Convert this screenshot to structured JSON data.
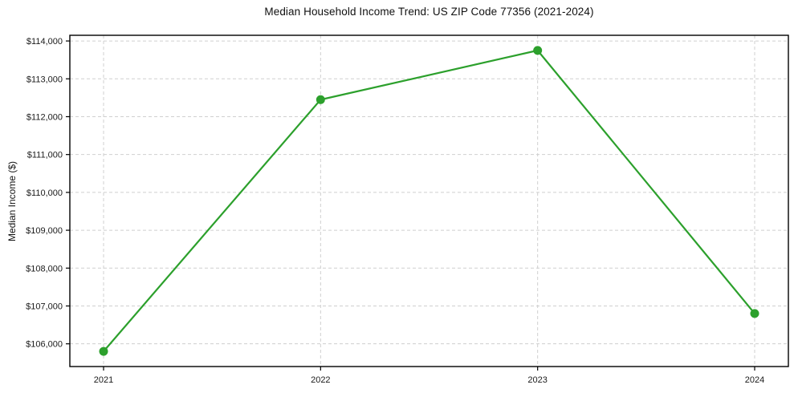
{
  "chart_data": {
    "type": "line",
    "title": "Median Household Income Trend: US ZIP Code 77356 (2021-2024)",
    "xlabel": "",
    "ylabel": "Median Income ($)",
    "categories": [
      "2021",
      "2022",
      "2023",
      "2024"
    ],
    "values": [
      105800,
      112450,
      113750,
      106800
    ],
    "ylim": [
      105400,
      114150
    ],
    "y_ticks": [
      {
        "value": 106000,
        "label": "$106,000"
      },
      {
        "value": 107000,
        "label": "$107,000"
      },
      {
        "value": 108000,
        "label": "$108,000"
      },
      {
        "value": 109000,
        "label": "$109,000"
      },
      {
        "value": 110000,
        "label": "$110,000"
      },
      {
        "value": 111000,
        "label": "$111,000"
      },
      {
        "value": 112000,
        "label": "$112,000"
      },
      {
        "value": 113000,
        "label": "$113,000"
      },
      {
        "value": 114000,
        "label": "$114,000"
      }
    ],
    "grid": true,
    "legend": "none",
    "line_color": "#2ca02c",
    "grid_color": "#cfcfcf",
    "spine_color": "#000000",
    "text_color": "#1a1a1a",
    "marker": "o"
  }
}
